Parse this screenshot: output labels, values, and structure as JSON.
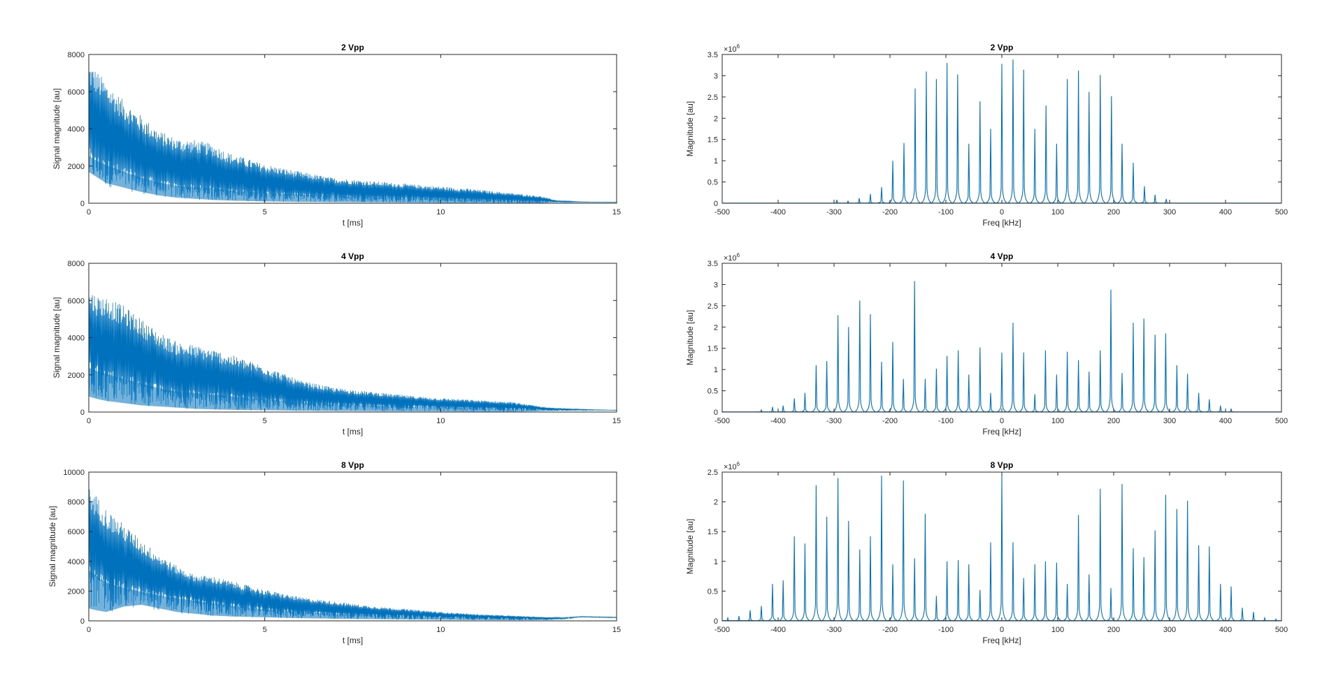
{
  "figure": {
    "background": "#ffffff",
    "line_color": "#0072BD",
    "axis_color": "#262626",
    "grid": false
  },
  "chart_data": [
    {
      "type": "line",
      "id": "time-2vpp",
      "title": "2 Vpp",
      "xlabel": "t [ms]",
      "ylabel": "Signal magnitude [au]",
      "xlim": [
        0,
        15
      ],
      "ylim": [
        0,
        8000
      ],
      "xticks": [
        0,
        5,
        10,
        15
      ],
      "yticks": [
        0,
        2000,
        4000,
        6000,
        8000
      ],
      "ytick_labels": [
        "0",
        "2000",
        "4000",
        "6000",
        "8000"
      ],
      "envelope": {
        "t": [
          0,
          0.2,
          0.5,
          1,
          1.5,
          2,
          2.5,
          3,
          3.5,
          4,
          5,
          6,
          7,
          8,
          9,
          10,
          11,
          12,
          12.8,
          13.3,
          14,
          15
        ],
        "upper": [
          7600,
          7200,
          6500,
          5500,
          4700,
          3900,
          3500,
          3400,
          3200,
          2700,
          2100,
          1700,
          1350,
          1200,
          1050,
          900,
          750,
          550,
          400,
          150,
          80,
          60
        ],
        "lower": [
          1400,
          1200,
          900,
          700,
          500,
          350,
          250,
          200,
          150,
          120,
          80,
          60,
          50,
          40,
          30,
          20,
          20,
          20,
          10,
          50,
          60,
          60
        ],
        "dense": [
          3000,
          2700,
          2400,
          2000,
          1600,
          1300,
          1100,
          1000,
          950,
          800,
          650,
          550,
          450,
          380,
          320,
          260,
          210,
          160,
          120,
          80,
          60,
          60
        ]
      }
    },
    {
      "type": "line",
      "id": "time-4vpp",
      "title": "4 Vpp",
      "xlabel": "t [ms]",
      "ylabel": "Signal magnitude [au]",
      "xlim": [
        0,
        15
      ],
      "ylim": [
        0,
        8000
      ],
      "xticks": [
        0,
        5,
        10,
        15
      ],
      "yticks": [
        0,
        2000,
        4000,
        6000,
        8000
      ],
      "ytick_labels": [
        "0",
        "2000",
        "4000",
        "6000",
        "8000"
      ],
      "envelope": {
        "t": [
          0,
          0.2,
          0.5,
          1,
          1.5,
          2,
          2.5,
          3,
          3.5,
          4,
          5,
          6,
          7,
          8,
          9,
          10,
          11,
          12,
          12.5,
          13,
          14,
          15
        ],
        "upper": [
          6700,
          6300,
          6200,
          5700,
          5000,
          4300,
          3800,
          3600,
          3400,
          3100,
          2500,
          1700,
          1300,
          1100,
          900,
          750,
          650,
          550,
          400,
          250,
          150,
          100
        ],
        "lower": [
          700,
          600,
          500,
          400,
          300,
          250,
          200,
          150,
          120,
          100,
          80,
          60,
          50,
          40,
          30,
          30,
          20,
          20,
          30,
          50,
          80,
          100
        ],
        "dense": [
          2800,
          2600,
          2400,
          2100,
          1800,
          1500,
          1300,
          1200,
          1100,
          1000,
          800,
          600,
          500,
          420,
          360,
          300,
          250,
          200,
          180,
          150,
          120,
          100
        ]
      }
    },
    {
      "type": "line",
      "id": "time-8vpp",
      "title": "8 Vpp",
      "xlabel": "t [ms]",
      "ylabel": "Signal magnitude [au]",
      "xlim": [
        0,
        15
      ],
      "ylim": [
        0,
        10000
      ],
      "xticks": [
        0,
        5,
        10,
        15
      ],
      "yticks": [
        0,
        2000,
        4000,
        6000,
        8000,
        10000
      ],
      "ytick_labels": [
        "0",
        "2000",
        "4000",
        "6000",
        "8000",
        "10000"
      ],
      "envelope": {
        "t": [
          0,
          0.2,
          0.5,
          1,
          1.5,
          2,
          2.5,
          3,
          3.5,
          4,
          5,
          6,
          7,
          8,
          9,
          10,
          11,
          12,
          13,
          13.5,
          14,
          15
        ],
        "upper": [
          9000,
          8500,
          7500,
          6500,
          5400,
          4500,
          3700,
          3100,
          3000,
          2700,
          2100,
          1600,
          1300,
          1000,
          800,
          600,
          450,
          350,
          250,
          220,
          300,
          250
        ],
        "lower": [
          700,
          600,
          500,
          800,
          900,
          700,
          500,
          400,
          300,
          250,
          200,
          150,
          120,
          100,
          80,
          60,
          50,
          40,
          50,
          100,
          250,
          200
        ],
        "dense": [
          4000,
          3600,
          3000,
          2600,
          2300,
          2000,
          1800,
          1600,
          1400,
          1200,
          900,
          700,
          550,
          450,
          380,
          300,
          250,
          200,
          180,
          200,
          280,
          230
        ]
      }
    },
    {
      "type": "line",
      "id": "freq-2vpp",
      "title": "2 Vpp",
      "xlabel": "Freq [kHz]",
      "ylabel": "Magnitude [au]",
      "xlim": [
        -500,
        500
      ],
      "ylim": [
        0,
        3.5
      ],
      "exponent_label": "×10",
      "exponent_power": "6",
      "xticks": [
        -500,
        -400,
        -300,
        -200,
        -100,
        0,
        100,
        200,
        300,
        400,
        500
      ],
      "yticks": [
        0,
        0.5,
        1,
        1.5,
        2,
        2.5,
        3,
        3.5
      ],
      "ytick_labels": [
        "0",
        "0.5",
        "1",
        "1.5",
        "2",
        "2.5",
        "3",
        "3.5"
      ],
      "peaks": {
        "freq": [
          -295,
          -275,
          -255,
          -235,
          -215,
          -195,
          -175,
          -155,
          -135,
          -117,
          -98,
          -79,
          -59,
          -39,
          -20,
          0,
          20,
          39,
          59,
          79,
          98,
          117,
          137,
          156,
          176,
          196,
          215,
          235,
          255,
          274,
          294
        ],
        "mag": [
          0.08,
          0.05,
          0.12,
          0.22,
          0.38,
          1.0,
          1.42,
          2.7,
          3.1,
          2.92,
          3.3,
          3.03,
          1.4,
          2.4,
          1.75,
          3.28,
          3.38,
          3.14,
          1.75,
          2.3,
          1.4,
          2.92,
          3.12,
          2.62,
          3.02,
          2.52,
          1.4,
          0.95,
          0.4,
          0.2,
          0.1
        ]
      }
    },
    {
      "type": "line",
      "id": "freq-4vpp",
      "title": "4 Vpp",
      "xlabel": "Freq [kHz]",
      "ylabel": "Magnitude [au]",
      "xlim": [
        -500,
        500
      ],
      "ylim": [
        0,
        3.5
      ],
      "exponent_label": "×10",
      "exponent_power": "6",
      "xticks": [
        -500,
        -400,
        -300,
        -200,
        -100,
        0,
        100,
        200,
        300,
        400,
        500
      ],
      "yticks": [
        0,
        0.5,
        1,
        1.5,
        2,
        2.5,
        3,
        3.5
      ],
      "ytick_labels": [
        "0",
        "0.5",
        "1",
        "1.5",
        "2",
        "2.5",
        "3",
        "3.5"
      ],
      "peaks": {
        "freq": [
          -430,
          -410,
          -391,
          -371,
          -352,
          -332,
          -313,
          -293,
          -274,
          -254,
          -235,
          -215,
          -195,
          -176,
          -156,
          -137,
          -117,
          -98,
          -78,
          -59,
          -39,
          -20,
          0,
          20,
          39,
          59,
          78,
          98,
          117,
          137,
          156,
          176,
          195,
          215,
          235,
          254,
          274,
          293,
          313,
          332,
          352,
          371,
          391,
          410
        ],
        "mag": [
          0.05,
          0.12,
          0.15,
          0.32,
          0.45,
          1.1,
          1.2,
          2.28,
          2.0,
          2.62,
          2.3,
          1.18,
          1.65,
          0.78,
          3.08,
          0.78,
          1.02,
          1.32,
          1.45,
          0.88,
          1.52,
          0.45,
          1.4,
          2.1,
          1.4,
          0.42,
          1.45,
          0.88,
          1.42,
          1.22,
          0.95,
          1.45,
          2.88,
          0.92,
          2.1,
          2.2,
          1.82,
          1.85,
          1.1,
          0.9,
          0.45,
          0.3,
          0.15,
          0.08
        ]
      }
    },
    {
      "type": "line",
      "id": "freq-8vpp",
      "title": "8 Vpp",
      "xlabel": "Freq [kHz]",
      "ylabel": "Magnitude [au]",
      "xlim": [
        -500,
        500
      ],
      "ylim": [
        0,
        2.5
      ],
      "exponent_label": "×10",
      "exponent_power": "6",
      "xticks": [
        -500,
        -400,
        -300,
        -200,
        -100,
        0,
        100,
        200,
        300,
        400,
        500
      ],
      "yticks": [
        0,
        0.5,
        1,
        1.5,
        2,
        2.5
      ],
      "ytick_labels": [
        "0",
        "0.5",
        "1",
        "1.5",
        "2",
        "2.5"
      ],
      "peaks": {
        "freq": [
          -490,
          -470,
          -450,
          -430,
          -410,
          -391,
          -371,
          -352,
          -332,
          -313,
          -293,
          -274,
          -254,
          -235,
          -215,
          -195,
          -176,
          -156,
          -137,
          -117,
          -98,
          -78,
          -59,
          -39,
          -20,
          0,
          20,
          39,
          59,
          78,
          98,
          117,
          137,
          156,
          176,
          195,
          215,
          235,
          254,
          274,
          293,
          313,
          332,
          352,
          371,
          391,
          410,
          430,
          450,
          470,
          490
        ],
        "mag": [
          0.05,
          0.08,
          0.18,
          0.25,
          0.62,
          0.68,
          1.42,
          1.3,
          2.28,
          1.75,
          2.4,
          1.68,
          1.2,
          1.42,
          2.44,
          0.95,
          2.36,
          1.05,
          1.8,
          0.42,
          1.0,
          1.02,
          0.95,
          0.52,
          1.32,
          2.45,
          1.32,
          0.72,
          0.95,
          1.0,
          0.98,
          0.62,
          1.78,
          0.78,
          2.22,
          0.55,
          2.3,
          1.22,
          1.07,
          1.52,
          2.12,
          1.88,
          2.02,
          1.27,
          1.25,
          0.62,
          0.58,
          0.22,
          0.15,
          0.05,
          0.03
        ]
      }
    }
  ]
}
